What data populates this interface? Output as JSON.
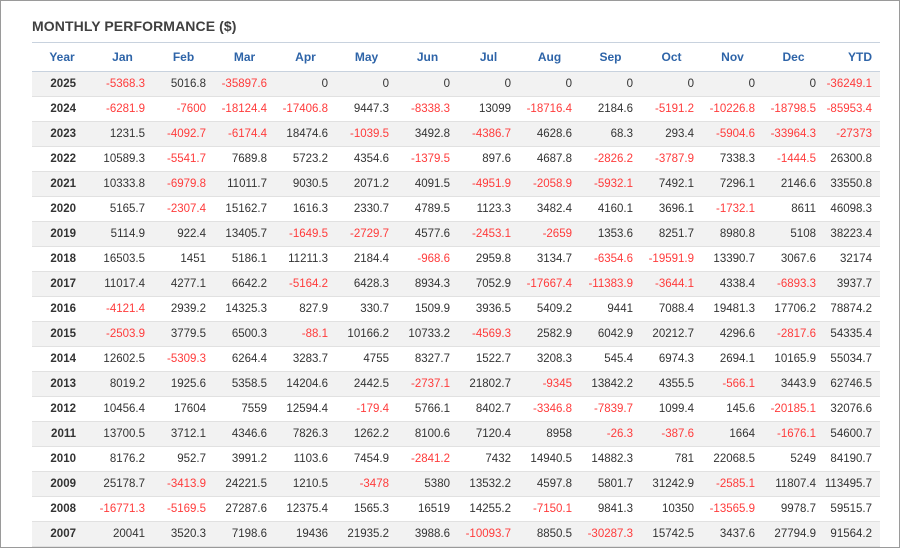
{
  "title": "MONTHLY PERFORMANCE ($)",
  "colors": {
    "header_text": "#2e64a8",
    "negative": "#ff3b3b",
    "positive": "#333333",
    "stripe": "#f2f2f2"
  },
  "columns": [
    "Year",
    "Jan",
    "Feb",
    "Mar",
    "Apr",
    "May",
    "Jun",
    "Jul",
    "Aug",
    "Sep",
    "Oct",
    "Nov",
    "Dec",
    "YTD"
  ],
  "rows": [
    [
      "2025",
      "-5368.3",
      "5016.8",
      "-35897.6",
      "0",
      "0",
      "0",
      "0",
      "0",
      "0",
      "0",
      "0",
      "0",
      "-36249.1"
    ],
    [
      "2024",
      "-6281.9",
      "-7600",
      "-18124.4",
      "-17406.8",
      "9447.3",
      "-8338.3",
      "13099",
      "-18716.4",
      "2184.6",
      "-5191.2",
      "-10226.8",
      "-18798.5",
      "-85953.4"
    ],
    [
      "2023",
      "1231.5",
      "-4092.7",
      "-6174.4",
      "18474.6",
      "-1039.5",
      "3492.8",
      "-4386.7",
      "4628.6",
      "68.3",
      "293.4",
      "-5904.6",
      "-33964.3",
      "-27373"
    ],
    [
      "2022",
      "10589.3",
      "-5541.7",
      "7689.8",
      "5723.2",
      "4354.6",
      "-1379.5",
      "897.6",
      "4687.8",
      "-2826.2",
      "-3787.9",
      "7338.3",
      "-1444.5",
      "26300.8"
    ],
    [
      "2021",
      "10333.8",
      "-6979.8",
      "11011.7",
      "9030.5",
      "2071.2",
      "4091.5",
      "-4951.9",
      "-2058.9",
      "-5932.1",
      "7492.1",
      "7296.1",
      "2146.6",
      "33550.8"
    ],
    [
      "2020",
      "5165.7",
      "-2307.4",
      "15162.7",
      "1616.3",
      "2330.7",
      "4789.5",
      "1123.3",
      "3482.4",
      "4160.1",
      "3696.1",
      "-1732.1",
      "8611",
      "46098.3"
    ],
    [
      "2019",
      "5114.9",
      "922.4",
      "13405.7",
      "-1649.5",
      "-2729.7",
      "4577.6",
      "-2453.1",
      "-2659",
      "1353.6",
      "8251.7",
      "8980.8",
      "5108",
      "38223.4"
    ],
    [
      "2018",
      "16503.5",
      "1451",
      "5186.1",
      "11211.3",
      "2184.4",
      "-968.6",
      "2959.8",
      "3134.7",
      "-6354.6",
      "-19591.9",
      "13390.7",
      "3067.6",
      "32174"
    ],
    [
      "2017",
      "11017.4",
      "4277.1",
      "6642.2",
      "-5164.2",
      "6428.3",
      "8934.3",
      "7052.9",
      "-17667.4",
      "-11383.9",
      "-3644.1",
      "4338.4",
      "-6893.3",
      "3937.7"
    ],
    [
      "2016",
      "-4121.4",
      "2939.2",
      "14325.3",
      "827.9",
      "330.7",
      "1509.9",
      "3936.5",
      "5409.2",
      "9441",
      "7088.4",
      "19481.3",
      "17706.2",
      "78874.2"
    ],
    [
      "2015",
      "-2503.9",
      "3779.5",
      "6500.3",
      "-88.1",
      "10166.2",
      "10733.2",
      "-4569.3",
      "2582.9",
      "6042.9",
      "20212.7",
      "4296.6",
      "-2817.6",
      "54335.4"
    ],
    [
      "2014",
      "12602.5",
      "-5309.3",
      "6264.4",
      "3283.7",
      "4755",
      "8327.7",
      "1522.7",
      "3208.3",
      "545.4",
      "6974.3",
      "2694.1",
      "10165.9",
      "55034.7"
    ],
    [
      "2013",
      "8019.2",
      "1925.6",
      "5358.5",
      "14204.6",
      "2442.5",
      "-2737.1",
      "21802.7",
      "-9345",
      "13842.2",
      "4355.5",
      "-566.1",
      "3443.9",
      "62746.5"
    ],
    [
      "2012",
      "10456.4",
      "17604",
      "7559",
      "12594.4",
      "-179.4",
      "5766.1",
      "8402.7",
      "-3346.8",
      "-7839.7",
      "1099.4",
      "145.6",
      "-20185.1",
      "32076.6"
    ],
    [
      "2011",
      "13700.5",
      "3712.1",
      "4346.6",
      "7826.3",
      "1262.2",
      "8100.6",
      "7120.4",
      "8958",
      "-26.3",
      "-387.6",
      "1664",
      "-1676.1",
      "54600.7"
    ],
    [
      "2010",
      "8176.2",
      "952.7",
      "3991.2",
      "1103.6",
      "7454.9",
      "-2841.2",
      "7432",
      "14940.5",
      "14882.3",
      "781",
      "22068.5",
      "5249",
      "84190.7"
    ],
    [
      "2009",
      "25178.7",
      "-3413.9",
      "24221.5",
      "1210.5",
      "-3478",
      "5380",
      "13532.2",
      "4597.8",
      "5801.7",
      "31242.9",
      "-2585.1",
      "11807.4",
      "113495.7"
    ],
    [
      "2008",
      "-16771.3",
      "-5169.5",
      "27287.6",
      "12375.4",
      "1565.3",
      "16519",
      "14255.2",
      "-7150.1",
      "9841.3",
      "10350",
      "-13565.9",
      "9978.7",
      "59515.7"
    ],
    [
      "2007",
      "20041",
      "3520.3",
      "7198.6",
      "19436",
      "21935.2",
      "3988.6",
      "-10093.7",
      "8850.5",
      "-30287.3",
      "15742.5",
      "3437.6",
      "27794.9",
      "91564.2"
    ]
  ]
}
